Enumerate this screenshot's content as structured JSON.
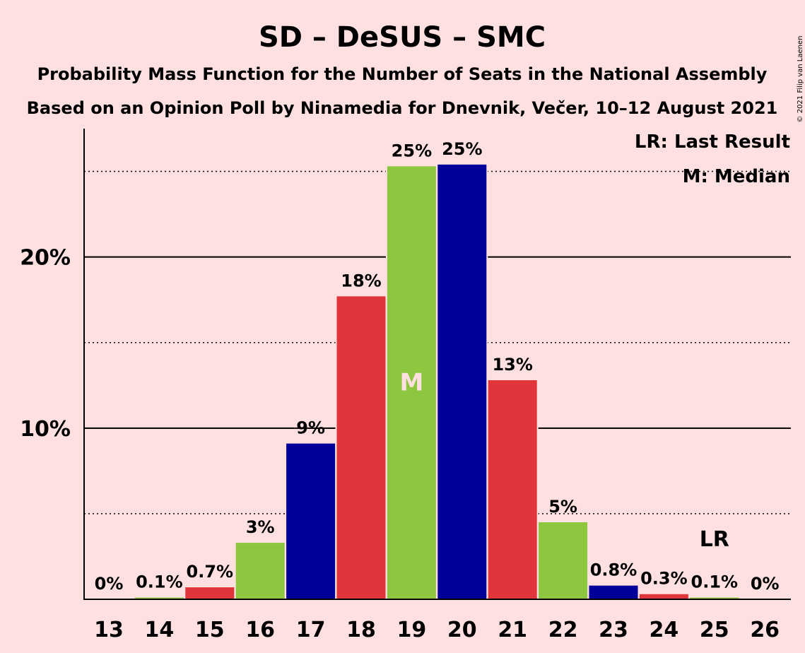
{
  "chart_data": {
    "type": "bar",
    "title": "SD – DeSUS – SMC",
    "subtitle_1": "Probability Mass Function for the Number of Seats in the National Assembly",
    "subtitle_2": "Based on an Opinion Poll by Ninamedia for Dnevnik, Večer, 10–12 August 2021",
    "categories": [
      "13",
      "14",
      "15",
      "16",
      "17",
      "18",
      "19",
      "20",
      "21",
      "22",
      "23",
      "24",
      "25",
      "26"
    ],
    "values": [
      0,
      0.1,
      0.7,
      3.3,
      9.1,
      17.7,
      25.3,
      25.4,
      12.8,
      4.5,
      0.8,
      0.3,
      0.1,
      0
    ],
    "data_labels": [
      "0%",
      "0.1%",
      "0.7%",
      "3%",
      "9%",
      "18%",
      "25%",
      "25%",
      "13%",
      "5%",
      "0.8%",
      "0.3%",
      "0.1%",
      "0%"
    ],
    "bar_colors": [
      "#E0353A",
      "#8DC63F",
      "#E0353A",
      "#8DC63F",
      "#000099",
      "#E0353A",
      "#8DC63F",
      "#000099",
      "#E0353A",
      "#8DC63F",
      "#000099",
      "#E0353A",
      "#8DC63F",
      "#000099"
    ],
    "yticks": [
      10,
      20
    ],
    "ytick_labels": [
      "10%",
      "20%"
    ],
    "minor_gridlines": [
      5,
      15,
      25
    ],
    "ylim": [
      0,
      27.5
    ],
    "median_category": "19",
    "median_marker": "M",
    "last_result_category": "25",
    "last_result_marker": "LR",
    "legend": {
      "lr": "LR: Last Result",
      "median": "M: Median",
      "placement": "top-right"
    }
  },
  "copyright": "© 2021 Filip van Laenen"
}
